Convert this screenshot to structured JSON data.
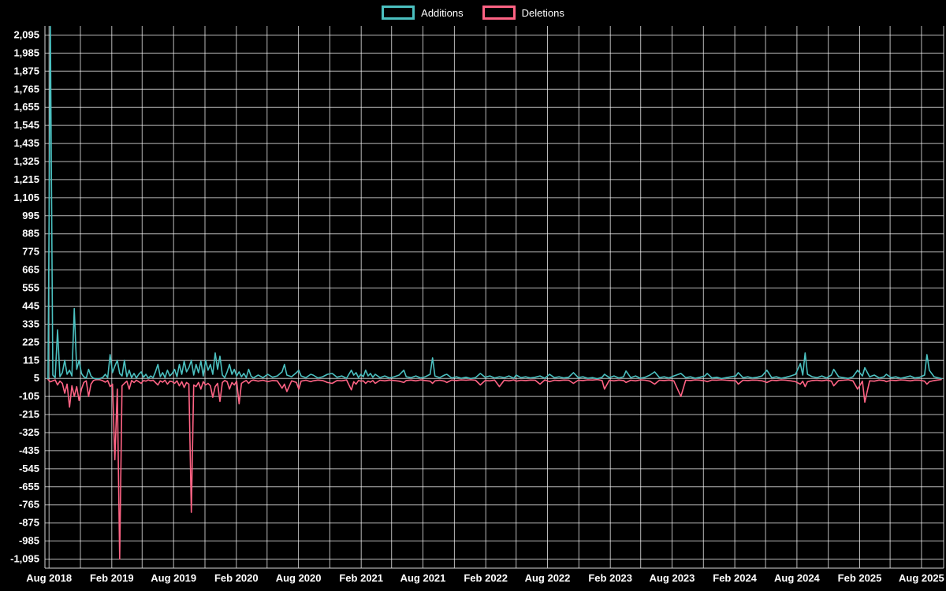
{
  "legend": {
    "items": [
      {
        "label": "Additions",
        "color": "#4bc0c0"
      },
      {
        "label": "Deletions",
        "color": "#ff6384"
      }
    ]
  },
  "chart_data": {
    "type": "line",
    "title": "",
    "background": "#000000",
    "grid": true,
    "legend_position": "top",
    "x_range": [
      "2018-07-20",
      "2025-10-05"
    ],
    "y_range": [
      -1150,
      2150
    ],
    "y_tick_labels": [
      "2,095",
      "1,985",
      "1,875",
      "1,765",
      "1,655",
      "1,545",
      "1,435",
      "1,325",
      "1,215",
      "1,105",
      "995",
      "885",
      "775",
      "665",
      "555",
      "445",
      "335",
      "225",
      "115",
      "5",
      "-105",
      "-215",
      "-325",
      "-435",
      "-545",
      "-655",
      "-765",
      "-875",
      "-985",
      "-1,095"
    ],
    "x_tick_labels": [
      "Aug 2018",
      "Feb 2019",
      "Aug 2019",
      "Feb 2020",
      "Aug 2020",
      "Feb 2021",
      "Aug 2021",
      "Feb 2022",
      "Aug 2022",
      "Feb 2023",
      "Aug 2023",
      "Feb 2024",
      "Aug 2024",
      "Feb 2025",
      "Aug 2025"
    ],
    "x_grid_dates": [
      "2018-08-01",
      "2018-11-01",
      "2019-02-01",
      "2019-05-01",
      "2019-08-01",
      "2019-11-01",
      "2020-02-01",
      "2020-05-01",
      "2020-08-01",
      "2020-11-01",
      "2021-02-01",
      "2021-05-01",
      "2021-08-01",
      "2021-11-01",
      "2022-02-01",
      "2022-05-01",
      "2022-08-01",
      "2022-11-01",
      "2023-02-01",
      "2023-05-01",
      "2023-08-01",
      "2023-11-01",
      "2024-02-01",
      "2024-05-01",
      "2024-08-01",
      "2024-11-01",
      "2025-02-01",
      "2025-05-01",
      "2025-08-01"
    ],
    "series_names": [
      "Additions",
      "Deletions"
    ],
    "colors": {
      "additions": "#4bc0c0",
      "deletions": "#ff6384",
      "grid": "rgba(255,255,255,0.72)",
      "axis": "#d8d8d8",
      "text": "#ffffff"
    },
    "points": [
      [
        "2018-07-29",
        4,
        -2
      ],
      [
        "2018-08-05",
        2147,
        -16
      ],
      [
        "2018-08-12",
        25,
        -10
      ],
      [
        "2018-08-19",
        10,
        -4
      ],
      [
        "2018-08-26",
        300,
        -35
      ],
      [
        "2018-09-02",
        15,
        -12
      ],
      [
        "2018-09-09",
        40,
        -25
      ],
      [
        "2018-09-16",
        115,
        -85
      ],
      [
        "2018-09-23",
        30,
        -30
      ],
      [
        "2018-09-30",
        55,
        -170
      ],
      [
        "2018-10-07",
        20,
        -40
      ],
      [
        "2018-10-14",
        430,
        -105
      ],
      [
        "2018-10-21",
        60,
        -45
      ],
      [
        "2018-10-28",
        115,
        -130
      ],
      [
        "2018-11-04",
        35,
        -60
      ],
      [
        "2018-11-11",
        15,
        -20
      ],
      [
        "2018-11-18",
        8,
        -10
      ],
      [
        "2018-11-25",
        60,
        -105
      ],
      [
        "2018-12-02",
        20,
        -30
      ],
      [
        "2018-12-09",
        6,
        -8
      ],
      [
        "2018-12-16",
        3,
        -3
      ],
      [
        "2018-12-23",
        2,
        -2
      ],
      [
        "2018-12-30",
        5,
        -4
      ],
      [
        "2019-01-06",
        12,
        -10
      ],
      [
        "2019-01-13",
        30,
        -18
      ],
      [
        "2019-01-20",
        10,
        -8
      ],
      [
        "2019-01-27",
        150,
        -45
      ],
      [
        "2019-02-03",
        40,
        -30
      ],
      [
        "2019-02-10",
        80,
        -490
      ],
      [
        "2019-02-17",
        115,
        -60
      ],
      [
        "2019-02-24",
        35,
        -1095
      ],
      [
        "2019-03-03",
        20,
        -40
      ],
      [
        "2019-03-10",
        115,
        -25
      ],
      [
        "2019-03-17",
        15,
        -12
      ],
      [
        "2019-03-24",
        55,
        -60
      ],
      [
        "2019-03-31",
        10,
        -8
      ],
      [
        "2019-04-07",
        35,
        -20
      ],
      [
        "2019-04-14",
        8,
        -6
      ],
      [
        "2019-04-21",
        30,
        -15
      ],
      [
        "2019-04-28",
        45,
        -25
      ],
      [
        "2019-05-05",
        12,
        -8
      ],
      [
        "2019-05-12",
        30,
        -12
      ],
      [
        "2019-05-19",
        6,
        -4
      ],
      [
        "2019-05-26",
        20,
        -10
      ],
      [
        "2019-06-02",
        10,
        -6
      ],
      [
        "2019-06-09",
        45,
        -20
      ],
      [
        "2019-06-16",
        90,
        -35
      ],
      [
        "2019-06-23",
        15,
        -10
      ],
      [
        "2019-06-30",
        40,
        -18
      ],
      [
        "2019-07-07",
        10,
        -6
      ],
      [
        "2019-07-14",
        55,
        -30
      ],
      [
        "2019-07-21",
        20,
        -12
      ],
      [
        "2019-07-28",
        35,
        -15
      ],
      [
        "2019-08-04",
        60,
        -25
      ],
      [
        "2019-08-11",
        15,
        -10
      ],
      [
        "2019-08-18",
        90,
        -40
      ],
      [
        "2019-08-25",
        30,
        -15
      ],
      [
        "2019-09-01",
        110,
        -50
      ],
      [
        "2019-09-08",
        45,
        -20
      ],
      [
        "2019-09-15",
        70,
        -30
      ],
      [
        "2019-09-22",
        115,
        -810
      ],
      [
        "2019-09-29",
        25,
        -35
      ],
      [
        "2019-10-06",
        90,
        -45
      ],
      [
        "2019-10-13",
        40,
        -20
      ],
      [
        "2019-10-20",
        110,
        -60
      ],
      [
        "2019-10-27",
        20,
        -15
      ],
      [
        "2019-11-03",
        115,
        -35
      ],
      [
        "2019-11-10",
        55,
        -25
      ],
      [
        "2019-11-17",
        90,
        -40
      ],
      [
        "2019-11-24",
        30,
        -110
      ],
      [
        "2019-12-01",
        160,
        -45
      ],
      [
        "2019-12-08",
        60,
        -25
      ],
      [
        "2019-12-15",
        140,
        -135
      ],
      [
        "2019-12-22",
        25,
        -20
      ],
      [
        "2019-12-29",
        10,
        -8
      ],
      [
        "2020-01-05",
        45,
        -15
      ],
      [
        "2020-01-12",
        90,
        -60
      ],
      [
        "2020-01-19",
        30,
        -20
      ],
      [
        "2020-01-26",
        60,
        -35
      ],
      [
        "2020-02-02",
        20,
        -12
      ],
      [
        "2020-02-09",
        45,
        -150
      ],
      [
        "2020-02-16",
        15,
        -25
      ],
      [
        "2020-02-23",
        35,
        -15
      ],
      [
        "2020-03-01",
        10,
        -8
      ],
      [
        "2020-03-08",
        60,
        -25
      ],
      [
        "2020-03-15",
        20,
        -10
      ],
      [
        "2020-03-22",
        8,
        -5
      ],
      [
        "2020-04-05",
        25,
        -12
      ],
      [
        "2020-04-19",
        10,
        -6
      ],
      [
        "2020-05-03",
        30,
        -15
      ],
      [
        "2020-05-17",
        12,
        -8
      ],
      [
        "2020-05-31",
        20,
        -10
      ],
      [
        "2020-06-14",
        45,
        -55
      ],
      [
        "2020-06-21",
        90,
        -30
      ],
      [
        "2020-06-28",
        25,
        -75
      ],
      [
        "2020-07-12",
        15,
        -10
      ],
      [
        "2020-07-26",
        40,
        -20
      ],
      [
        "2020-08-02",
        55,
        -60
      ],
      [
        "2020-08-09",
        20,
        -12
      ],
      [
        "2020-08-23",
        10,
        -6
      ],
      [
        "2020-09-06",
        30,
        -15
      ],
      [
        "2020-09-13",
        25,
        -10
      ],
      [
        "2020-09-27",
        8,
        -5
      ],
      [
        "2020-10-11",
        15,
        -8
      ],
      [
        "2020-10-25",
        30,
        -20
      ],
      [
        "2020-11-08",
        35,
        -25
      ],
      [
        "2020-11-22",
        12,
        -8
      ],
      [
        "2020-12-06",
        20,
        -10
      ],
      [
        "2020-12-20",
        6,
        -4
      ],
      [
        "2021-01-03",
        55,
        -65
      ],
      [
        "2021-01-10",
        25,
        -15
      ],
      [
        "2021-01-17",
        40,
        -30
      ],
      [
        "2021-01-24",
        10,
        -8
      ],
      [
        "2021-01-31",
        30,
        -12
      ],
      [
        "2021-02-07",
        15,
        -10
      ],
      [
        "2021-02-14",
        55,
        -25
      ],
      [
        "2021-02-21",
        20,
        -12
      ],
      [
        "2021-02-28",
        35,
        -18
      ],
      [
        "2021-03-07",
        12,
        -8
      ],
      [
        "2021-03-14",
        30,
        -25
      ],
      [
        "2021-03-28",
        10,
        -6
      ],
      [
        "2021-04-11",
        20,
        -10
      ],
      [
        "2021-04-25",
        8,
        -5
      ],
      [
        "2021-05-09",
        15,
        -8
      ],
      [
        "2021-05-23",
        25,
        -12
      ],
      [
        "2021-06-06",
        55,
        -20
      ],
      [
        "2021-06-13",
        15,
        -8
      ],
      [
        "2021-06-27",
        10,
        -5
      ],
      [
        "2021-07-11",
        20,
        -10
      ],
      [
        "2021-07-25",
        8,
        -4
      ],
      [
        "2021-08-08",
        15,
        -8
      ],
      [
        "2021-08-22",
        30,
        -12
      ],
      [
        "2021-08-29",
        130,
        -25
      ],
      [
        "2021-09-05",
        20,
        -10
      ],
      [
        "2021-09-19",
        10,
        -6
      ],
      [
        "2021-10-03",
        25,
        -12
      ],
      [
        "2021-10-10",
        30,
        -20
      ],
      [
        "2021-10-24",
        8,
        -5
      ],
      [
        "2021-11-07",
        15,
        -8
      ],
      [
        "2021-11-21",
        6,
        -4
      ],
      [
        "2021-12-05",
        12,
        -6
      ],
      [
        "2021-12-19",
        4,
        -3
      ],
      [
        "2022-01-02",
        10,
        -6
      ],
      [
        "2022-01-16",
        35,
        -35
      ],
      [
        "2022-01-30",
        12,
        -8
      ],
      [
        "2022-02-13",
        20,
        -10
      ],
      [
        "2022-02-27",
        8,
        -5
      ],
      [
        "2022-03-13",
        15,
        -45
      ],
      [
        "2022-03-27",
        10,
        -6
      ],
      [
        "2022-04-10",
        20,
        -10
      ],
      [
        "2022-04-24",
        6,
        -4
      ],
      [
        "2022-05-01",
        25,
        -12
      ],
      [
        "2022-05-15",
        10,
        -6
      ],
      [
        "2022-05-29",
        15,
        -8
      ],
      [
        "2022-06-12",
        8,
        -5
      ],
      [
        "2022-06-26",
        12,
        -6
      ],
      [
        "2022-07-10",
        20,
        -30
      ],
      [
        "2022-07-24",
        6,
        -4
      ],
      [
        "2022-08-07",
        30,
        -15
      ],
      [
        "2022-08-21",
        10,
        -6
      ],
      [
        "2022-09-04",
        15,
        -8
      ],
      [
        "2022-09-18",
        8,
        -5
      ],
      [
        "2022-10-02",
        12,
        -6
      ],
      [
        "2022-10-16",
        40,
        -25
      ],
      [
        "2022-10-30",
        10,
        -6
      ],
      [
        "2022-11-13",
        15,
        -8
      ],
      [
        "2022-11-27",
        6,
        -4
      ],
      [
        "2022-12-11",
        10,
        -5
      ],
      [
        "2022-12-25",
        3,
        -2
      ],
      [
        "2023-01-08",
        12,
        -8
      ],
      [
        "2023-01-15",
        30,
        -60
      ],
      [
        "2023-01-29",
        10,
        -6
      ],
      [
        "2023-02-12",
        20,
        -10
      ],
      [
        "2023-02-26",
        8,
        -5
      ],
      [
        "2023-03-12",
        15,
        -8
      ],
      [
        "2023-03-19",
        50,
        -20
      ],
      [
        "2023-04-02",
        10,
        -6
      ],
      [
        "2023-04-16",
        20,
        -10
      ],
      [
        "2023-04-30",
        6,
        -4
      ],
      [
        "2023-05-14",
        12,
        -6
      ],
      [
        "2023-05-28",
        25,
        -12
      ],
      [
        "2023-06-11",
        45,
        -30
      ],
      [
        "2023-06-25",
        10,
        -6
      ],
      [
        "2023-07-09",
        15,
        -8
      ],
      [
        "2023-07-23",
        8,
        -5
      ],
      [
        "2023-08-06",
        20,
        -10
      ],
      [
        "2023-08-27",
        35,
        -105
      ],
      [
        "2023-09-10",
        10,
        -6
      ],
      [
        "2023-09-24",
        15,
        -8
      ],
      [
        "2023-10-08",
        6,
        -4
      ],
      [
        "2023-10-22",
        12,
        -6
      ],
      [
        "2023-11-05",
        20,
        -10
      ],
      [
        "2023-11-12",
        35,
        -15
      ],
      [
        "2023-11-26",
        8,
        -5
      ],
      [
        "2023-12-10",
        12,
        -6
      ],
      [
        "2023-12-24",
        4,
        -3
      ],
      [
        "2024-01-07",
        10,
        -6
      ],
      [
        "2024-01-21",
        15,
        -8
      ],
      [
        "2024-02-04",
        20,
        -10
      ],
      [
        "2024-02-11",
        40,
        -30
      ],
      [
        "2024-02-25",
        10,
        -6
      ],
      [
        "2024-03-10",
        15,
        -8
      ],
      [
        "2024-03-24",
        8,
        -5
      ],
      [
        "2024-04-07",
        12,
        -6
      ],
      [
        "2024-04-21",
        20,
        -10
      ],
      [
        "2024-05-05",
        55,
        -20
      ],
      [
        "2024-05-19",
        10,
        -6
      ],
      [
        "2024-06-02",
        15,
        -8
      ],
      [
        "2024-06-16",
        6,
        -4
      ],
      [
        "2024-06-30",
        12,
        -6
      ],
      [
        "2024-07-14",
        20,
        -10
      ],
      [
        "2024-07-28",
        30,
        -15
      ],
      [
        "2024-08-11",
        95,
        -30
      ],
      [
        "2024-08-18",
        25,
        -12
      ],
      [
        "2024-08-25",
        160,
        -45
      ],
      [
        "2024-09-01",
        30,
        -15
      ],
      [
        "2024-09-15",
        15,
        -8
      ],
      [
        "2024-09-29",
        10,
        -6
      ],
      [
        "2024-10-13",
        20,
        -10
      ],
      [
        "2024-10-27",
        8,
        -5
      ],
      [
        "2024-11-10",
        25,
        -12
      ],
      [
        "2024-11-17",
        60,
        -40
      ],
      [
        "2024-12-01",
        15,
        -8
      ],
      [
        "2024-12-15",
        10,
        -6
      ],
      [
        "2024-12-29",
        5,
        -3
      ],
      [
        "2025-01-12",
        15,
        -10
      ],
      [
        "2025-01-26",
        55,
        -60
      ],
      [
        "2025-02-09",
        20,
        -12
      ],
      [
        "2025-02-16",
        70,
        -140
      ],
      [
        "2025-03-02",
        15,
        -10
      ],
      [
        "2025-03-16",
        25,
        -12
      ],
      [
        "2025-03-30",
        8,
        -5
      ],
      [
        "2025-04-13",
        15,
        -8
      ],
      [
        "2025-04-20",
        30,
        -15
      ],
      [
        "2025-05-04",
        10,
        -6
      ],
      [
        "2025-05-18",
        15,
        -8
      ],
      [
        "2025-06-01",
        6,
        -4
      ],
      [
        "2025-06-15",
        12,
        -6
      ],
      [
        "2025-06-29",
        20,
        -10
      ],
      [
        "2025-07-13",
        8,
        -5
      ],
      [
        "2025-07-27",
        12,
        -6
      ],
      [
        "2025-08-10",
        25,
        -12
      ],
      [
        "2025-08-17",
        150,
        -30
      ],
      [
        "2025-08-24",
        55,
        -15
      ],
      [
        "2025-09-07",
        15,
        -8
      ],
      [
        "2025-09-21",
        8,
        -4
      ],
      [
        "2025-09-28",
        4,
        -2
      ]
    ]
  }
}
